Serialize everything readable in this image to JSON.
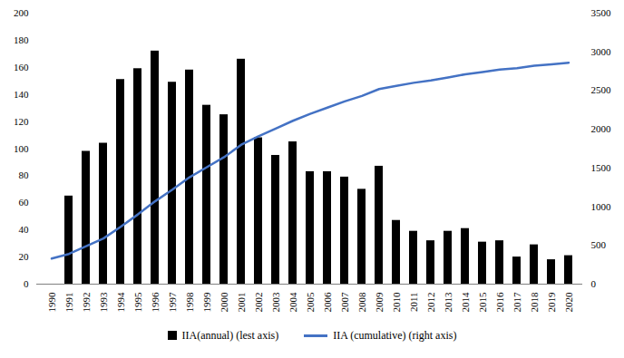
{
  "chart_data": {
    "type": "bar",
    "categories": [
      "1990",
      "1991",
      "1992",
      "1993",
      "1994",
      "1995",
      "1996",
      "1997",
      "1998",
      "1999",
      "2000",
      "2001",
      "2002",
      "2003",
      "2004",
      "2005",
      "2006",
      "2007",
      "2008",
      "2009",
      "2010",
      "2011",
      "2012",
      "2013",
      "2014",
      "2015",
      "2016",
      "2017",
      "2018",
      "2019",
      "2020"
    ],
    "series": [
      {
        "name": "IIA(annual) (lest axis)",
        "type": "bar",
        "color": "#000000",
        "values": [
          null,
          65,
          98,
          104,
          151,
          159,
          172,
          149,
          158,
          132,
          125,
          166,
          108,
          95,
          105,
          83,
          83,
          79,
          70,
          87,
          47,
          39,
          32,
          39,
          41,
          31,
          32,
          20,
          29,
          18,
          21
        ]
      },
      {
        "name": "IIA (cumulative) (right axis)",
        "type": "line",
        "axis": "y2",
        "color": "#4472c4",
        "values": [
          330,
          390,
          490,
          590,
          740,
          900,
          1070,
          1220,
          1380,
          1510,
          1640,
          1800,
          1910,
          2010,
          2110,
          2200,
          2280,
          2360,
          2430,
          2520,
          2560,
          2600,
          2630,
          2670,
          2710,
          2740,
          2770,
          2790,
          2820,
          2840,
          2860
        ]
      }
    ],
    "ylim": [
      0,
      200
    ],
    "yticks": [
      0,
      20,
      40,
      60,
      80,
      100,
      120,
      140,
      160,
      180,
      200
    ],
    "y2lim": [
      0,
      3500
    ],
    "y2ticks": [
      0,
      500,
      1000,
      1500,
      2000,
      2500,
      3000,
      3500
    ],
    "grid": false,
    "legend": "bottom"
  }
}
